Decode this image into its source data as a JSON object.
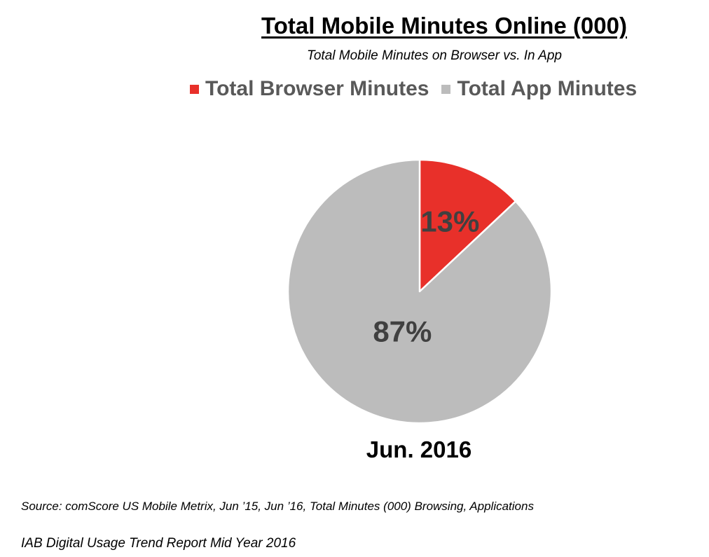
{
  "chart_data": {
    "type": "pie",
    "title": "Total Mobile Minutes Online (000)",
    "subtitle": "Total Mobile Minutes on Browser vs. In App",
    "category": "Jun. 2016",
    "legend_position": "top",
    "series": [
      {
        "name": "Total Browser Minutes",
        "value": 13,
        "label": "13%",
        "color": "#e8302a"
      },
      {
        "name": "Total App Minutes",
        "value": 87,
        "label": "87%",
        "color": "#bcbcbc"
      }
    ]
  },
  "source": "Source: comScore US Mobile Metrix, Jun ’15, Jun ’16, Total Minutes (000) Browsing, Applications",
  "footer": "IAB Digital Usage Trend Report Mid Year 2016"
}
